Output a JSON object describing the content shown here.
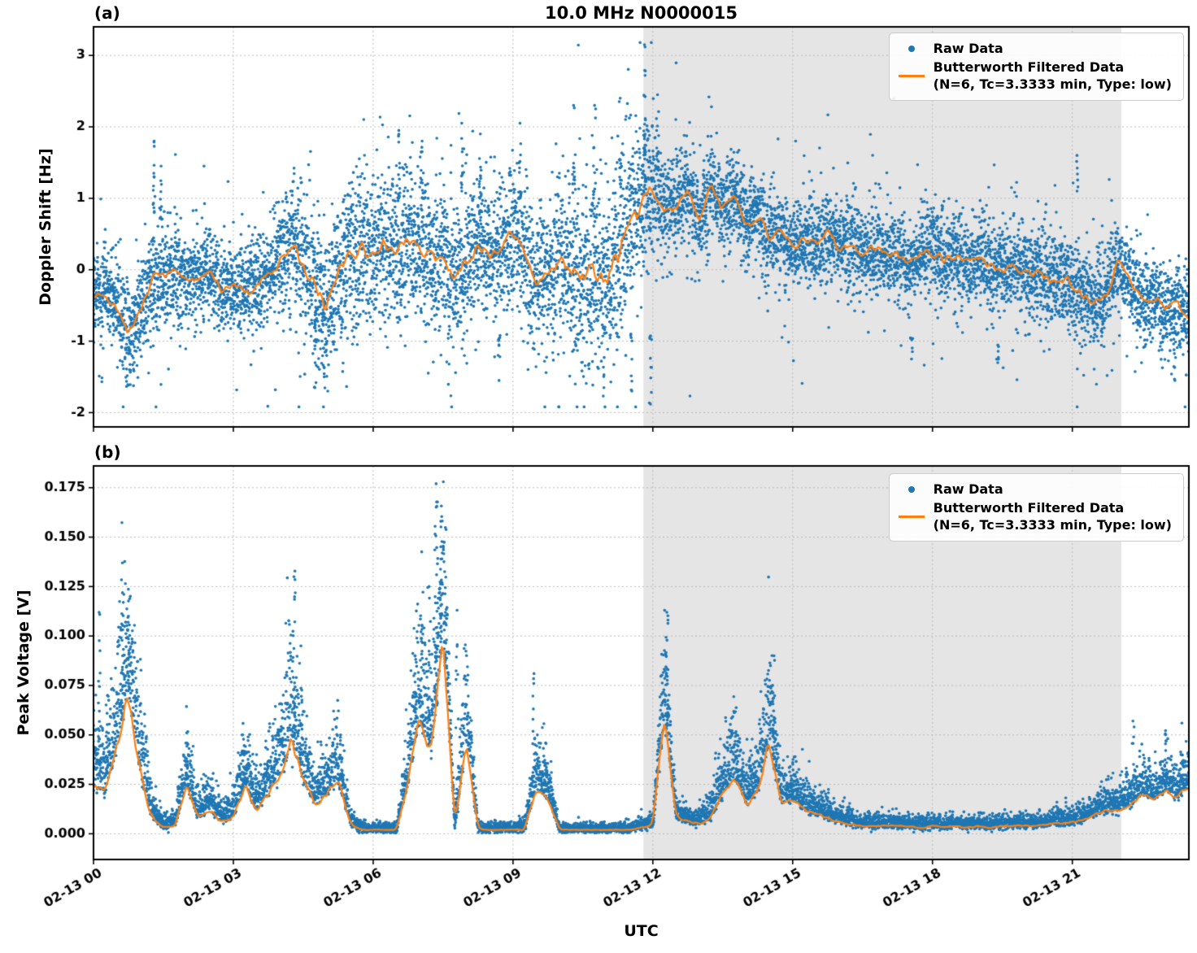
{
  "figure": {
    "title": "10.0 MHz N0000015",
    "xlabel": "UTC",
    "panel_a_label": "(a)",
    "panel_b_label": "(b)",
    "legend": {
      "raw_label": "Raw Data",
      "filtered_label": "Butterworth Filtered Data",
      "filtered_sublabel": "(N=6, Tc=3.3333 min, Type: low)"
    },
    "colors": {
      "raw": "#1f77b4",
      "filtered": "#ff7f0e",
      "shade": "#e5e5e5",
      "grid": "#bcbcbc",
      "frame": "#000000",
      "text": "#000000"
    }
  },
  "x_axis": {
    "label": "UTC",
    "xlim_hours": [
      0,
      23.5
    ],
    "tick_hours": [
      0,
      3,
      6,
      9,
      12,
      15,
      18,
      21
    ],
    "tick_labels": [
      "02-13 00",
      "02-13 03",
      "02-13 06",
      "02-13 09",
      "02-13 12",
      "02-13 15",
      "02-13 18",
      "02-13 21"
    ],
    "shade_hours": [
      11.8,
      22.05
    ]
  },
  "chart_data": [
    {
      "type": "scatter",
      "panel": "a",
      "seed": 20240213,
      "title": "10.0 MHz N0000015",
      "ylabel": "Doppler Shift [Hz]",
      "series_names": [
        "Raw Data",
        "Butterworth Filtered Data (N=6, Tc=3.3333 min, Type: low)"
      ],
      "filtered_series_type": "line",
      "ylim": [
        -2.2,
        3.4
      ],
      "ytick_values": [
        -2,
        -1,
        0,
        1,
        2,
        3
      ],
      "ytick_labels": [
        "-2",
        "-1",
        "0",
        "1",
        "2",
        "3"
      ],
      "x_step_hours": 0.25,
      "filtered_y": [
        -0.35,
        -0.3,
        -0.55,
        -0.9,
        -0.6,
        -0.15,
        -0.1,
        -0.05,
        -0.2,
        -0.1,
        0.0,
        -0.3,
        -0.2,
        -0.3,
        -0.25,
        -0.1,
        0.1,
        0.4,
        0.1,
        -0.25,
        -0.5,
        0.0,
        0.2,
        0.3,
        0.2,
        0.4,
        0.3,
        0.45,
        0.25,
        0.2,
        0.1,
        -0.15,
        0.1,
        0.3,
        0.2,
        0.35,
        0.5,
        0.3,
        -0.2,
        -0.1,
        0.1,
        -0.05,
        -0.1,
        0.0,
        -0.15,
        0.2,
        0.7,
        0.9,
        1.2,
        0.8,
        0.85,
        1.15,
        0.7,
        1.2,
        0.8,
        1.1,
        0.6,
        0.8,
        0.4,
        0.55,
        0.3,
        0.4,
        0.35,
        0.5,
        0.3,
        0.35,
        0.25,
        0.3,
        0.2,
        0.25,
        0.1,
        0.2,
        0.25,
        0.15,
        0.2,
        0.1,
        0.15,
        0.05,
        0.0,
        0.1,
        -0.1,
        0.0,
        -0.15,
        -0.1,
        -0.2,
        -0.35,
        -0.5,
        -0.3,
        0.15,
        -0.2,
        -0.45,
        -0.4,
        -0.55,
        -0.45,
        -0.7
      ],
      "scatter_sigma": [
        0.35,
        0.35,
        0.4,
        0.4,
        0.4,
        0.5,
        0.45,
        0.4,
        0.35,
        0.35,
        0.35,
        0.35,
        0.35,
        0.4,
        0.4,
        0.35,
        0.5,
        0.55,
        0.55,
        0.55,
        0.6,
        0.65,
        0.7,
        0.65,
        0.6,
        0.6,
        0.6,
        0.6,
        0.55,
        0.6,
        0.65,
        0.6,
        0.6,
        0.6,
        0.55,
        0.55,
        0.55,
        0.6,
        0.55,
        0.5,
        0.7,
        0.8,
        0.85,
        0.85,
        0.85,
        0.8,
        0.7,
        0.6,
        0.55,
        0.45,
        0.4,
        0.35,
        0.35,
        0.35,
        0.35,
        0.35,
        0.35,
        0.35,
        0.35,
        0.35,
        0.35,
        0.35,
        0.35,
        0.35,
        0.35,
        0.35,
        0.35,
        0.35,
        0.35,
        0.35,
        0.3,
        0.3,
        0.35,
        0.35,
        0.35,
        0.35,
        0.35,
        0.35,
        0.35,
        0.35,
        0.4,
        0.4,
        0.4,
        0.4,
        0.4,
        0.4,
        0.4,
        0.4,
        0.35,
        0.35,
        0.35,
        0.35,
        0.35,
        0.35,
        0.35
      ],
      "outlier_columns": [
        {
          "x": 1.3,
          "ymin": 0.8,
          "ymax": 1.8,
          "n": 14
        },
        {
          "x": 1.45,
          "ymin": 0.7,
          "ymax": 1.45,
          "n": 10
        },
        {
          "x": 4.75,
          "ymin": -1.65,
          "ymax": -0.7,
          "n": 12
        },
        {
          "x": 4.95,
          "ymin": -1.5,
          "ymax": -0.6,
          "n": 10
        },
        {
          "x": 6.55,
          "ymin": 1.0,
          "ymax": 1.95,
          "n": 12
        },
        {
          "x": 7.05,
          "ymin": 1.0,
          "ymax": 1.8,
          "n": 10
        },
        {
          "x": 7.9,
          "ymin": 1.1,
          "ymax": 2.05,
          "n": 10
        },
        {
          "x": 8.3,
          "ymin": 1.0,
          "ymax": 1.9,
          "n": 10
        },
        {
          "x": 8.7,
          "ymin": -1.55,
          "ymax": -0.9,
          "n": 8
        },
        {
          "x": 9.15,
          "ymin": 1.0,
          "ymax": 2.05,
          "n": 10
        },
        {
          "x": 10.3,
          "ymin": 1.2,
          "ymax": 2.3,
          "n": 12
        },
        {
          "x": 10.75,
          "ymin": 1.0,
          "ymax": 2.3,
          "n": 12
        },
        {
          "x": 10.95,
          "ymin": -1.65,
          "ymax": -0.8,
          "n": 8
        },
        {
          "x": 11.3,
          "ymin": 1.2,
          "ymax": 2.4,
          "n": 12
        },
        {
          "x": 11.55,
          "ymin": -1.7,
          "ymax": -0.9,
          "n": 8
        },
        {
          "x": 11.82,
          "ymin": 1.6,
          "ymax": 3.15,
          "n": 26
        },
        {
          "x": 11.95,
          "ymin": -1.88,
          "ymax": -0.9,
          "n": 10
        },
        {
          "x": 12.1,
          "ymin": 1.4,
          "ymax": 2.45,
          "n": 10
        },
        {
          "x": 17.55,
          "ymin": -1.25,
          "ymax": -0.95,
          "n": 6
        },
        {
          "x": 19.4,
          "ymin": -1.3,
          "ymax": -1.05,
          "n": 6
        },
        {
          "x": 21.1,
          "ymin": 1.1,
          "ymax": 1.6,
          "n": 6
        },
        {
          "x": 23.2,
          "ymin": -1.55,
          "ymax": -1.1,
          "n": 6
        }
      ]
    },
    {
      "type": "scatter",
      "panel": "b",
      "seed": 777,
      "ylabel": "Peak Voltage [V]",
      "series_names": [
        "Raw Data",
        "Butterworth Filtered Data (N=6, Tc=3.3333 min, Type: low)"
      ],
      "filtered_series_type": "line",
      "ylim": [
        -0.013,
        0.186
      ],
      "ytick_values": [
        0.0,
        0.025,
        0.05,
        0.075,
        0.1,
        0.125,
        0.15,
        0.175
      ],
      "ytick_labels": [
        "0.000",
        "0.025",
        "0.050",
        "0.075",
        "0.100",
        "0.125",
        "0.150",
        "0.175"
      ],
      "x_step_hours": 0.25,
      "filtered_y": [
        0.025,
        0.02,
        0.045,
        0.072,
        0.03,
        0.008,
        0.003,
        0.004,
        0.025,
        0.008,
        0.012,
        0.006,
        0.008,
        0.025,
        0.012,
        0.02,
        0.03,
        0.046,
        0.028,
        0.015,
        0.02,
        0.027,
        0.005,
        0.002,
        0.002,
        0.002,
        0.002,
        0.025,
        0.058,
        0.04,
        0.102,
        0.002,
        0.047,
        0.002,
        0.002,
        0.002,
        0.002,
        0.002,
        0.023,
        0.018,
        0.002,
        0.002,
        0.002,
        0.002,
        0.002,
        0.002,
        0.002,
        0.003,
        0.004,
        0.06,
        0.008,
        0.006,
        0.005,
        0.008,
        0.02,
        0.03,
        0.015,
        0.02,
        0.049,
        0.015,
        0.018,
        0.012,
        0.01,
        0.008,
        0.006,
        0.005,
        0.004,
        0.004,
        0.004,
        0.004,
        0.004,
        0.003,
        0.004,
        0.003,
        0.004,
        0.003,
        0.004,
        0.003,
        0.004,
        0.004,
        0.004,
        0.004,
        0.005,
        0.005,
        0.006,
        0.007,
        0.01,
        0.012,
        0.012,
        0.015,
        0.02,
        0.016,
        0.022,
        0.018,
        0.025
      ],
      "scatter_spread": [
        0.02,
        0.012,
        0.02,
        0.025,
        0.02,
        0.006,
        0.002,
        0.003,
        0.012,
        0.005,
        0.007,
        0.004,
        0.006,
        0.012,
        0.007,
        0.01,
        0.015,
        0.03,
        0.015,
        0.008,
        0.01,
        0.012,
        0.003,
        0.001,
        0.001,
        0.001,
        0.001,
        0.015,
        0.025,
        0.02,
        0.035,
        0.002,
        0.02,
        0.001,
        0.001,
        0.001,
        0.001,
        0.002,
        0.012,
        0.008,
        0.001,
        0.001,
        0.001,
        0.001,
        0.001,
        0.001,
        0.001,
        0.002,
        0.002,
        0.02,
        0.004,
        0.003,
        0.003,
        0.005,
        0.01,
        0.012,
        0.008,
        0.01,
        0.02,
        0.006,
        0.008,
        0.006,
        0.005,
        0.004,
        0.003,
        0.003,
        0.002,
        0.002,
        0.002,
        0.002,
        0.002,
        0.002,
        0.002,
        0.002,
        0.002,
        0.002,
        0.002,
        0.002,
        0.002,
        0.002,
        0.002,
        0.002,
        0.002,
        0.003,
        0.003,
        0.003,
        0.004,
        0.005,
        0.005,
        0.006,
        0.008,
        0.007,
        0.008,
        0.007,
        0.009
      ],
      "peaks": [
        {
          "x": 0.12,
          "ymax": 0.112,
          "n": 14
        },
        {
          "x": 0.3,
          "ymax": 0.07,
          "n": 10
        },
        {
          "x": 0.62,
          "ymax": 0.137,
          "n": 22
        },
        {
          "x": 0.75,
          "ymax": 0.11,
          "n": 16
        },
        {
          "x": 2.0,
          "ymax": 0.051,
          "n": 10
        },
        {
          "x": 3.2,
          "ymax": 0.05,
          "n": 10
        },
        {
          "x": 3.5,
          "ymax": 0.04,
          "n": 8
        },
        {
          "x": 4.3,
          "ymax": 0.13,
          "n": 20
        },
        {
          "x": 4.45,
          "ymax": 0.095,
          "n": 12
        },
        {
          "x": 5.3,
          "ymax": 0.05,
          "n": 10
        },
        {
          "x": 6.9,
          "ymax": 0.09,
          "n": 14
        },
        {
          "x": 7.05,
          "ymax": 0.105,
          "n": 14
        },
        {
          "x": 7.2,
          "ymax": 0.125,
          "n": 14
        },
        {
          "x": 7.35,
          "ymax": 0.177,
          "n": 28
        },
        {
          "x": 7.45,
          "ymax": 0.158,
          "n": 18
        },
        {
          "x": 7.55,
          "ymax": 0.112,
          "n": 14
        },
        {
          "x": 7.8,
          "ymax": 0.113,
          "n": 18
        },
        {
          "x": 9.45,
          "ymax": 0.081,
          "n": 14
        },
        {
          "x": 9.7,
          "ymax": 0.046,
          "n": 10
        },
        {
          "x": 12.3,
          "ymax": 0.112,
          "n": 22
        },
        {
          "x": 13.8,
          "ymax": 0.05,
          "n": 12
        },
        {
          "x": 14.1,
          "ymax": 0.042,
          "n": 10
        },
        {
          "x": 14.6,
          "ymax": 0.09,
          "n": 16
        },
        {
          "x": 15.0,
          "ymax": 0.036,
          "n": 8
        },
        {
          "x": 22.3,
          "ymax": 0.057,
          "n": 8
        },
        {
          "x": 23.0,
          "ymax": 0.05,
          "n": 8
        },
        {
          "x": 23.35,
          "ymax": 0.056,
          "n": 8
        }
      ]
    }
  ]
}
